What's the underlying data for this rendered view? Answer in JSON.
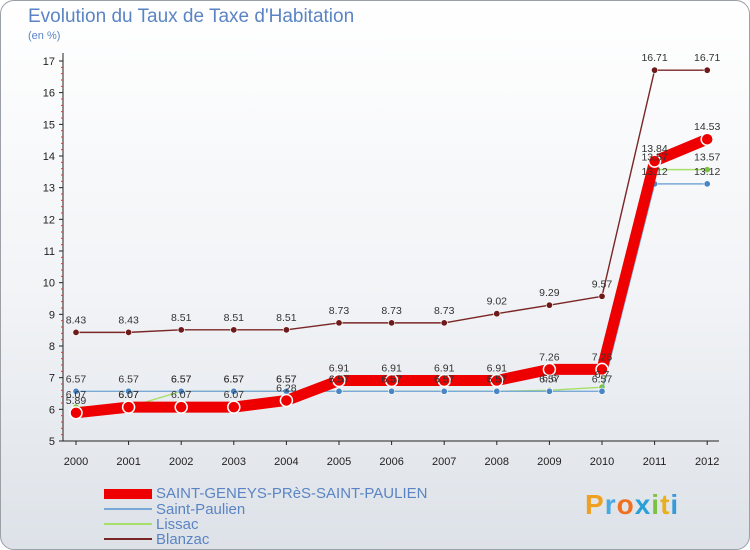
{
  "title": "Evolution du Taux de Taxe d'Habitation",
  "subtitle": "(en %)",
  "brand": "Proxiti",
  "brand_letters": [
    {
      "ch": "P",
      "color": "#f0a020"
    },
    {
      "ch": "r",
      "color": "#4aa8e0"
    },
    {
      "ch": "o",
      "color": "#f07020"
    },
    {
      "ch": "x",
      "color": "#2aa0d8"
    },
    {
      "ch": "i",
      "color": "#7cc242"
    },
    {
      "ch": "t",
      "color": "#e8b020"
    },
    {
      "ch": "i",
      "color": "#3a9ad8"
    }
  ],
  "chart_data": {
    "type": "line",
    "title": "Evolution du Taux de Taxe d'Habitation",
    "ylabel": "(en %)",
    "xlabel": "",
    "categories": [
      "2000",
      "2001",
      "2002",
      "2003",
      "2004",
      "2005",
      "2006",
      "2007",
      "2008",
      "2009",
      "2010",
      "2011",
      "2012"
    ],
    "ylim": [
      5,
      17
    ],
    "yticks": [
      5,
      6,
      7,
      8,
      9,
      10,
      11,
      12,
      13,
      14,
      15,
      16,
      17
    ],
    "grid": false,
    "legend_position": "bottom-left",
    "series": [
      {
        "name": "Blanzac",
        "color": "#7a2626",
        "marker": "#6e1a1a",
        "values": [
          8.43,
          8.43,
          8.51,
          8.51,
          8.51,
          8.73,
          8.73,
          8.73,
          9.02,
          9.29,
          9.57,
          16.71,
          16.71
        ],
        "labels": [
          "8.43",
          "8.43",
          "8.51",
          "8.51",
          "8.51",
          "8.73",
          "8.73",
          "8.73",
          "9.02",
          "9.29",
          "9.57",
          "16.71",
          "16.71"
        ]
      },
      {
        "name": "Lissac",
        "color": "#a6df6a",
        "marker": "#7cc242",
        "values": [
          6.07,
          6.07,
          6.57,
          6.57,
          6.57,
          6.57,
          6.57,
          6.57,
          6.57,
          6.6,
          6.7,
          13.57,
          13.57
        ],
        "labels": [
          "6.07",
          "6.07",
          "6.57",
          "6.57",
          "6.57",
          "6.57",
          "6.57",
          "6.57",
          "6.57",
          "6.6",
          "6.7",
          "13.57",
          "13.57"
        ]
      },
      {
        "name": "Saint-Paulien",
        "color": "#79a9d6",
        "marker": "#4a86c6",
        "values": [
          6.57,
          6.57,
          6.57,
          6.57,
          6.57,
          6.57,
          6.57,
          6.57,
          6.57,
          6.57,
          6.57,
          13.12,
          13.12
        ],
        "labels": [
          "6.57",
          "6.57",
          "6.57",
          "6.57",
          "6.57",
          "6.57",
          "6.57",
          "6.57",
          "6.57",
          "6.57",
          "6.57",
          "13.12",
          "13.12"
        ]
      },
      {
        "name": "SAINT-GENEYS-PRèS-SAINT-PAULIEN",
        "color": "#ee0000",
        "marker": "#ee0000",
        "thick": true,
        "values": [
          5.89,
          6.07,
          6.07,
          6.07,
          6.28,
          6.91,
          6.91,
          6.91,
          6.91,
          7.26,
          7.26,
          13.84,
          14.53
        ],
        "labels": [
          "5.89",
          "6.07",
          "6.07",
          "6.07",
          "6.28",
          "6.91",
          "6.91",
          "6.91",
          "6.91",
          "7.26",
          "7.26",
          "13.84",
          "14.53"
        ]
      }
    ]
  }
}
